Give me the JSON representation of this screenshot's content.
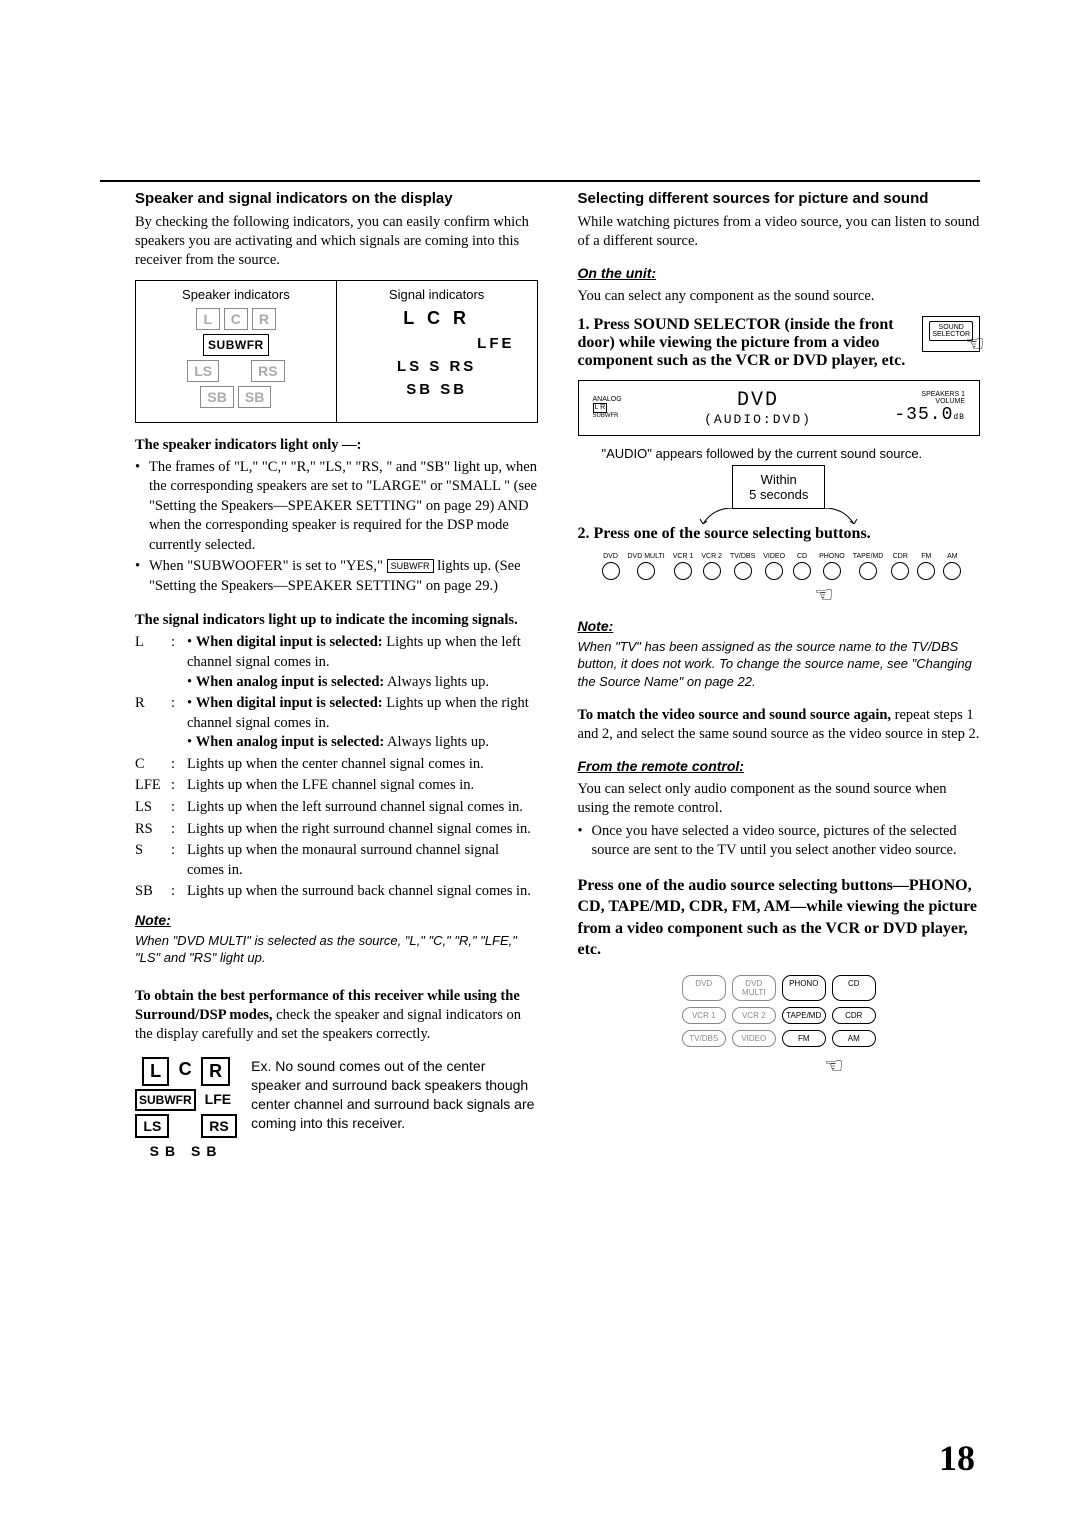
{
  "left": {
    "heading": "Speaker and signal indicators on the display",
    "intro": "By checking the following indicators, you can easily confirm which speakers you are activating and which signals are coming into this receiver from the source.",
    "diag": {
      "spk_title": "Speaker indicators",
      "sig_title": "Signal indicators",
      "spk_lcr": [
        "L",
        "C",
        "R"
      ],
      "spk_sub": "SUBWFR",
      "spk_ls": [
        "LS",
        "RS"
      ],
      "spk_sb": [
        "SB",
        "SB"
      ],
      "sig_lcr": "L    C    R",
      "sig_lfe": "LFE",
      "sig_lsrs": "LS   S   RS",
      "sig_sb": "SB  SB"
    },
    "spk_light_head": "The speaker indicators light only —:",
    "spk_b1": "The frames of \"L,\" \"C,\" \"R,\" \"LS,\" \"RS, \" and \"SB\" light up, when the corresponding speakers are set to \"LARGE\" or \"SMALL \" (see \"Setting the Speakers—SPEAKER SETTING\" on page 29) AND when the corresponding speaker is required for the DSP mode currently selected.",
    "spk_b2a": "When \"SUBWOOFER\" is set to \"YES,\" ",
    "spk_b2_box": "SUBWFR",
    "spk_b2b": " lights up. (See \"Setting the Speakers—SPEAKER SETTING\" on page 29.)",
    "sig_head": "The signal indicators light up to indicate the incoming signals.",
    "defs": [
      {
        "lbl": "L",
        "txt": "• When digital input is selected: Lights up when the left channel signal comes in.\n• When analog input is selected: Always lights up.",
        "bold_prefix": [
          "When digital input is selected:",
          "When analog input is selected:"
        ]
      },
      {
        "lbl": "R",
        "txt": "• When digital input is selected: Lights up when the right channel signal comes in.\n• When analog input is selected: Always lights up.",
        "bold_prefix": [
          "When digital input is selected:",
          "When analog input is selected:"
        ]
      },
      {
        "lbl": "C",
        "txt": "Lights up when the center channel signal comes in."
      },
      {
        "lbl": "LFE",
        "txt": "Lights up when the LFE channel signal comes in."
      },
      {
        "lbl": "LS",
        "txt": "Lights up when the left surround channel signal comes in."
      },
      {
        "lbl": "RS",
        "txt": "Lights up when the right surround channel signal comes in."
      },
      {
        "lbl": "S",
        "txt": "Lights up when the monaural surround channel signal comes in."
      },
      {
        "lbl": "SB",
        "txt": "Lights up when the surround back channel signal comes in."
      }
    ],
    "note_head": "Note:",
    "note_body": "When \"DVD MULTI\" is selected as the source, \"L,\" \"C,\" \"R,\" \"LFE,\" \"LS\" and \"RS\" light up.",
    "perf_a": "To obtain the best performance of this receiver while using the Surround/DSP modes,",
    "perf_b": " check the speaker and signal indicators on the display carefully and set the speakers correctly.",
    "ex": {
      "row1_boxed": [
        "L"
      ],
      "row1_mid": "C",
      "row1_right": "R",
      "row2_sub": "SUBWFR",
      "row2_lfe": "LFE",
      "row3": [
        "LS",
        "RS"
      ],
      "row4": "SB    SB",
      "text": "Ex. No sound comes out of the center speaker and surround back speakers though center channel and surround back signals are coming into this receiver."
    }
  },
  "right": {
    "heading": "Selecting different sources for picture and sound",
    "intro": "While watching pictures from a video source, you can listen to sound of a different source.",
    "on_unit": "On the unit:",
    "unit_text": "You can select any component as the sound source.",
    "step1_num": "1.",
    "step1": "Press SOUND SELECTOR (inside the front door) while viewing the picture from a video component such as the VCR or DVD player, etc.",
    "sel_btn": "SOUND\nSELECTOR",
    "lcd": {
      "analog": "ANALOG",
      "lr": "L   R",
      "sub": "SUBWFR",
      "l1": "DVD",
      "l2": "(AUDIO:DVD)",
      "spk": "SPEAKERS  1",
      "volume_lbl": "VOLUME",
      "volume": "-35.0",
      "db": "dB"
    },
    "audio_appears": "\"AUDIO\" appears followed by the current sound source.",
    "within": "Within\n5 seconds",
    "step2_num": "2.",
    "step2": "Press one of the source selecting buttons.",
    "knobs": [
      "DVD",
      "DVD MULTI",
      "VCR 1",
      "VCR 2",
      "TV/DBS",
      "VIDEO",
      "CD",
      "PHONO",
      "TAPE/MD",
      "CDR",
      "FM",
      "AM"
    ],
    "note2_head": "Note:",
    "note2_body": "When \"TV\" has been assigned as the source name to the TV/DBS button, it does not work. To change the source name, see \"Changing the Source Name\" on page 22.",
    "match_a": "To match the video source and sound source again,",
    "match_b": " repeat steps 1 and 2, and select the same sound source as the video source in step 2.",
    "from_remote": "From the remote control:",
    "remote_text": "You can select only audio component as the sound source when using the remote control.",
    "remote_bullet": "Once you have selected a video source, pictures of the selected source are sent to the TV until you select another video source.",
    "press_audio": "Press one of the audio source selecting buttons—PHONO, CD, TAPE/MD, CDR, FM, AM—while viewing the picture from a video component such as the VCR or DVD player, etc.",
    "remote": {
      "r1": [
        "DVD",
        "DVD MULTI",
        "PHONO",
        "CD"
      ],
      "r2": [
        "VCR 1",
        "VCR 2",
        "TAPE/MD",
        "CDR"
      ],
      "r3": [
        "TV/DBS",
        "VIDEO",
        "FM",
        "AM"
      ],
      "active": [
        "PHONO",
        "CD",
        "TAPE/MD",
        "CDR",
        "FM",
        "AM"
      ]
    }
  },
  "page_number": "18"
}
